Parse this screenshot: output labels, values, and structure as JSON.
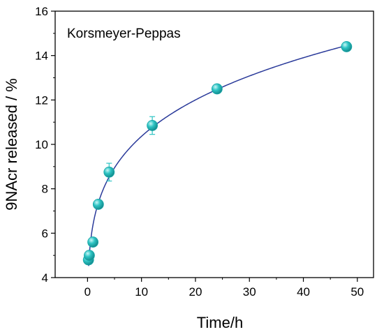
{
  "chart_data": {
    "type": "scatter",
    "annotation": "Korsmeyer-Peppas",
    "xlabel": "Time/h",
    "ylabel": "9NAcr released / %",
    "xlim": [
      -6,
      53
    ],
    "ylim": [
      4,
      16
    ],
    "xticks": [
      0,
      10,
      20,
      30,
      40,
      50
    ],
    "yticks": [
      4,
      6,
      8,
      10,
      12,
      14,
      16
    ],
    "grid": false,
    "legend": "none",
    "marker_color": "#2ec4c4",
    "fit_color": "#2a3a9a",
    "series": [
      {
        "x": [
          0.17,
          0.33,
          1,
          2,
          4,
          12,
          24,
          48
        ],
        "y": [
          4.8,
          5.0,
          5.6,
          7.3,
          8.75,
          10.85,
          12.5,
          14.4
        ],
        "yerr": [
          0.2,
          0.15,
          0.15,
          0.15,
          0.4,
          0.4,
          0.15,
          0.15
        ]
      }
    ],
    "fit": {
      "model": "Korsmeyer-Peppas",
      "k": 6.36,
      "n": 0.212,
      "x_range": [
        0.2,
        48
      ]
    }
  }
}
